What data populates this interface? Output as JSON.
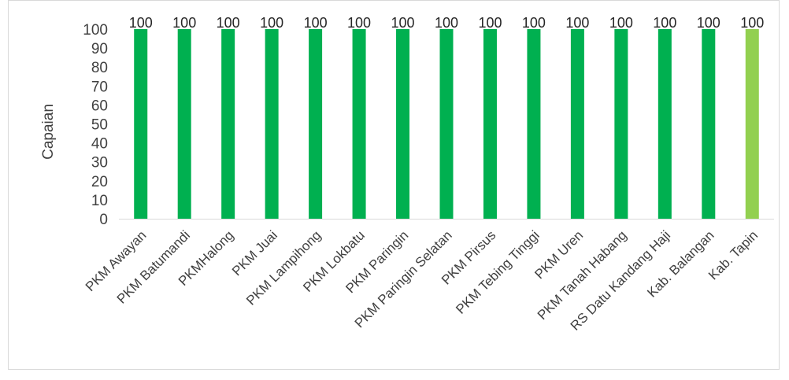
{
  "chart_data": {
    "type": "bar",
    "title": "",
    "xlabel": "",
    "ylabel": "Capaian",
    "ylim": [
      0,
      100
    ],
    "yticks": [
      0,
      10,
      20,
      30,
      40,
      50,
      60,
      70,
      80,
      90,
      100
    ],
    "grid": false,
    "legend": "none",
    "categories": [
      "PKM Awayan",
      "PKM Batumandi",
      "PKMHalong",
      "PKM Juai",
      "PKM Lampihong",
      "PKM Lokbatu",
      "PKM Paringin",
      "PKM Paringin Selatan",
      "PKM Pirsus",
      "PKM Tebing Tinggi",
      "PKM Uren",
      "PKM Tanah Habang",
      "RS Datu Kandang Haji",
      "Kab. Balangan",
      "Kab. Tapin"
    ],
    "values": [
      100,
      100,
      100,
      100,
      100,
      100,
      100,
      100,
      100,
      100,
      100,
      100,
      100,
      100,
      100
    ],
    "bar_colors": [
      "#00b050",
      "#00b050",
      "#00b050",
      "#00b050",
      "#00b050",
      "#00b050",
      "#00b050",
      "#00b050",
      "#00b050",
      "#00b050",
      "#00b050",
      "#00b050",
      "#00b050",
      "#00b050",
      "#92d050"
    ],
    "data_labels": [
      "100",
      "100",
      "100",
      "100",
      "100",
      "100",
      "100",
      "100",
      "100",
      "100",
      "100",
      "100",
      "100",
      "100",
      "100"
    ]
  }
}
